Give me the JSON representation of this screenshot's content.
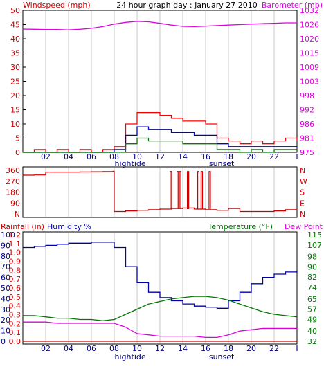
{
  "header": {
    "left_label": "Windspeed (mph)",
    "title": "24 hour graph day : January 27 2010",
    "right_label": "Barometer (mb)"
  },
  "colors": {
    "gust": "#ff0000",
    "avg": "#0000cc",
    "min": "#008000",
    "baro": "#e000e0",
    "dir": "#cc0000",
    "humidity": "#0000aa",
    "temperature": "#007700",
    "dewpoint": "#dd00dd",
    "rain": "#cc0000",
    "grid": "#c8c8c8",
    "frame": "#000000"
  },
  "x_axis": {
    "ticks": [
      "02",
      "04",
      "06",
      "08",
      "10",
      "12",
      "14",
      "16",
      "18",
      "20",
      "22",
      "I"
    ],
    "markers": [
      "hightide",
      "sunset"
    ]
  },
  "chart_data": [
    {
      "type": "line",
      "name": "wind-barometer",
      "ylabel_left": "Windspeed (mph)",
      "ylabel_right": "Barometer (mb)",
      "ylim_left": [
        0,
        50
      ],
      "yticks_left": [
        "0",
        "5",
        "10",
        "15",
        "20",
        "25",
        "30",
        "35",
        "40",
        "45",
        "50"
      ],
      "yticks_right": [
        "975",
        "981",
        "986",
        "992",
        "998",
        "1003",
        "1009",
        "1015",
        "1020",
        "1026",
        "1032"
      ],
      "x": [
        0,
        1,
        2,
        3,
        4,
        5,
        6,
        7,
        8,
        9,
        10,
        11,
        12,
        13,
        14,
        15,
        16,
        17,
        18,
        19,
        20,
        21,
        22,
        23,
        24
      ],
      "series": [
        {
          "key": "gust",
          "axis": "left",
          "values": [
            0,
            1,
            0,
            1,
            0,
            1,
            0,
            1,
            2,
            10,
            14,
            14,
            13,
            12,
            11,
            11,
            10,
            5,
            4,
            3,
            4,
            3,
            4,
            5,
            4
          ]
        },
        {
          "key": "avg",
          "axis": "left",
          "values": [
            0,
            0,
            0,
            0,
            0,
            0,
            0,
            0,
            1,
            6,
            9,
            8,
            8,
            7,
            7,
            6,
            6,
            3,
            2,
            2,
            2,
            2,
            2,
            2,
            2
          ]
        },
        {
          "key": "min",
          "axis": "left",
          "values": [
            0,
            0,
            0,
            0,
            0,
            0,
            0,
            0,
            0,
            3,
            5,
            4,
            4,
            4,
            3,
            3,
            3,
            1,
            1,
            0,
            1,
            0,
            1,
            1,
            1
          ]
        },
        {
          "key": "baro",
          "axis": "right",
          "values": [
            1024.5,
            1024.4,
            1024.3,
            1024.3,
            1024.2,
            1024.4,
            1024.8,
            1025.5,
            1026.5,
            1027.2,
            1027.6,
            1027.4,
            1026.8,
            1026.1,
            1025.6,
            1025.5,
            1025.7,
            1025.9,
            1026.1,
            1026.3,
            1026.5,
            1026.7,
            1026.8,
            1027.0,
            1027.0
          ]
        }
      ]
    },
    {
      "type": "line",
      "name": "wind-direction",
      "yticks_left": [
        "N",
        "90",
        "180",
        "270",
        "360"
      ],
      "yticks_right": [
        "N",
        "E",
        "S",
        "W",
        "N"
      ],
      "ylim": [
        0,
        360
      ],
      "x": [
        0,
        1,
        2,
        3,
        4,
        5,
        6,
        7,
        7.9,
        8,
        9,
        10,
        11,
        12,
        13,
        14,
        15,
        16,
        17,
        18,
        19,
        20,
        21,
        22,
        23,
        24
      ],
      "values": [
        320,
        322,
        345,
        345,
        345,
        346,
        348,
        350,
        352,
        20,
        25,
        30,
        35,
        40,
        45,
        50,
        40,
        35,
        30,
        45,
        20,
        20,
        20,
        25,
        35,
        40
      ],
      "spikes_x": [
        12.9,
        13.5,
        13.7,
        14.4,
        15.3,
        15.6,
        16.3
      ],
      "spikes_to": 350
    },
    {
      "type": "line",
      "name": "humidity-temperature",
      "ylabel_left_rain": "Rainfall (in)",
      "ylabel_left_humidity": "Humidity %",
      "ylabel_right_temp": "Temperature (°F)",
      "ylabel_right_dew": "Dew Point",
      "ylim_humidity": [
        0,
        100
      ],
      "ylim_temperature": [
        32,
        115
      ],
      "yticks_humidity": [
        "0",
        "10",
        "20",
        "30",
        "40",
        "50",
        "60",
        "70",
        "80",
        "90",
        "100"
      ],
      "yticks_rain": [
        "0.0",
        "0.1",
        "0.2",
        "0.3",
        "0.4",
        "0.5",
        "0.6",
        "0.7",
        "0.8",
        "0.9",
        "1.0",
        "1.1",
        "1.2"
      ],
      "yticks_temperature": [
        "32",
        "40",
        "49",
        "57",
        "65",
        "74",
        "82",
        "90",
        "98",
        "107",
        "115"
      ],
      "x": [
        0,
        1,
        2,
        3,
        4,
        5,
        6,
        7,
        8,
        9,
        10,
        11,
        12,
        13,
        14,
        15,
        16,
        17,
        18,
        19,
        20,
        21,
        22,
        23,
        24
      ],
      "series": [
        {
          "key": "humidity",
          "axis": "humidity",
          "values": [
            88,
            89,
            90,
            91,
            92,
            92,
            93,
            93,
            88,
            70,
            55,
            46,
            41,
            38,
            35,
            33,
            32,
            31,
            38,
            46,
            54,
            60,
            63,
            65,
            66
          ]
        },
        {
          "key": "temperature",
          "axis": "temperature",
          "values": [
            52,
            52,
            51,
            50,
            50,
            49,
            49,
            48,
            49,
            53,
            57,
            61,
            63,
            65,
            66,
            67,
            67,
            66,
            64,
            61,
            58,
            55,
            53,
            52,
            51
          ]
        },
        {
          "key": "dewpoint",
          "axis": "temperature",
          "values": [
            47,
            47,
            47,
            46,
            46,
            46,
            46,
            46,
            46,
            43,
            38,
            37,
            36,
            36,
            36,
            36,
            35,
            35,
            37,
            40,
            41,
            42,
            42,
            42,
            42
          ]
        },
        {
          "key": "rain",
          "axis": "humidity",
          "values": [
            0,
            0,
            0,
            0,
            0,
            0,
            0,
            0,
            0,
            0,
            0,
            0,
            0,
            0,
            0,
            0,
            0,
            0,
            0,
            0,
            0,
            0,
            0,
            0,
            0
          ]
        }
      ]
    }
  ]
}
